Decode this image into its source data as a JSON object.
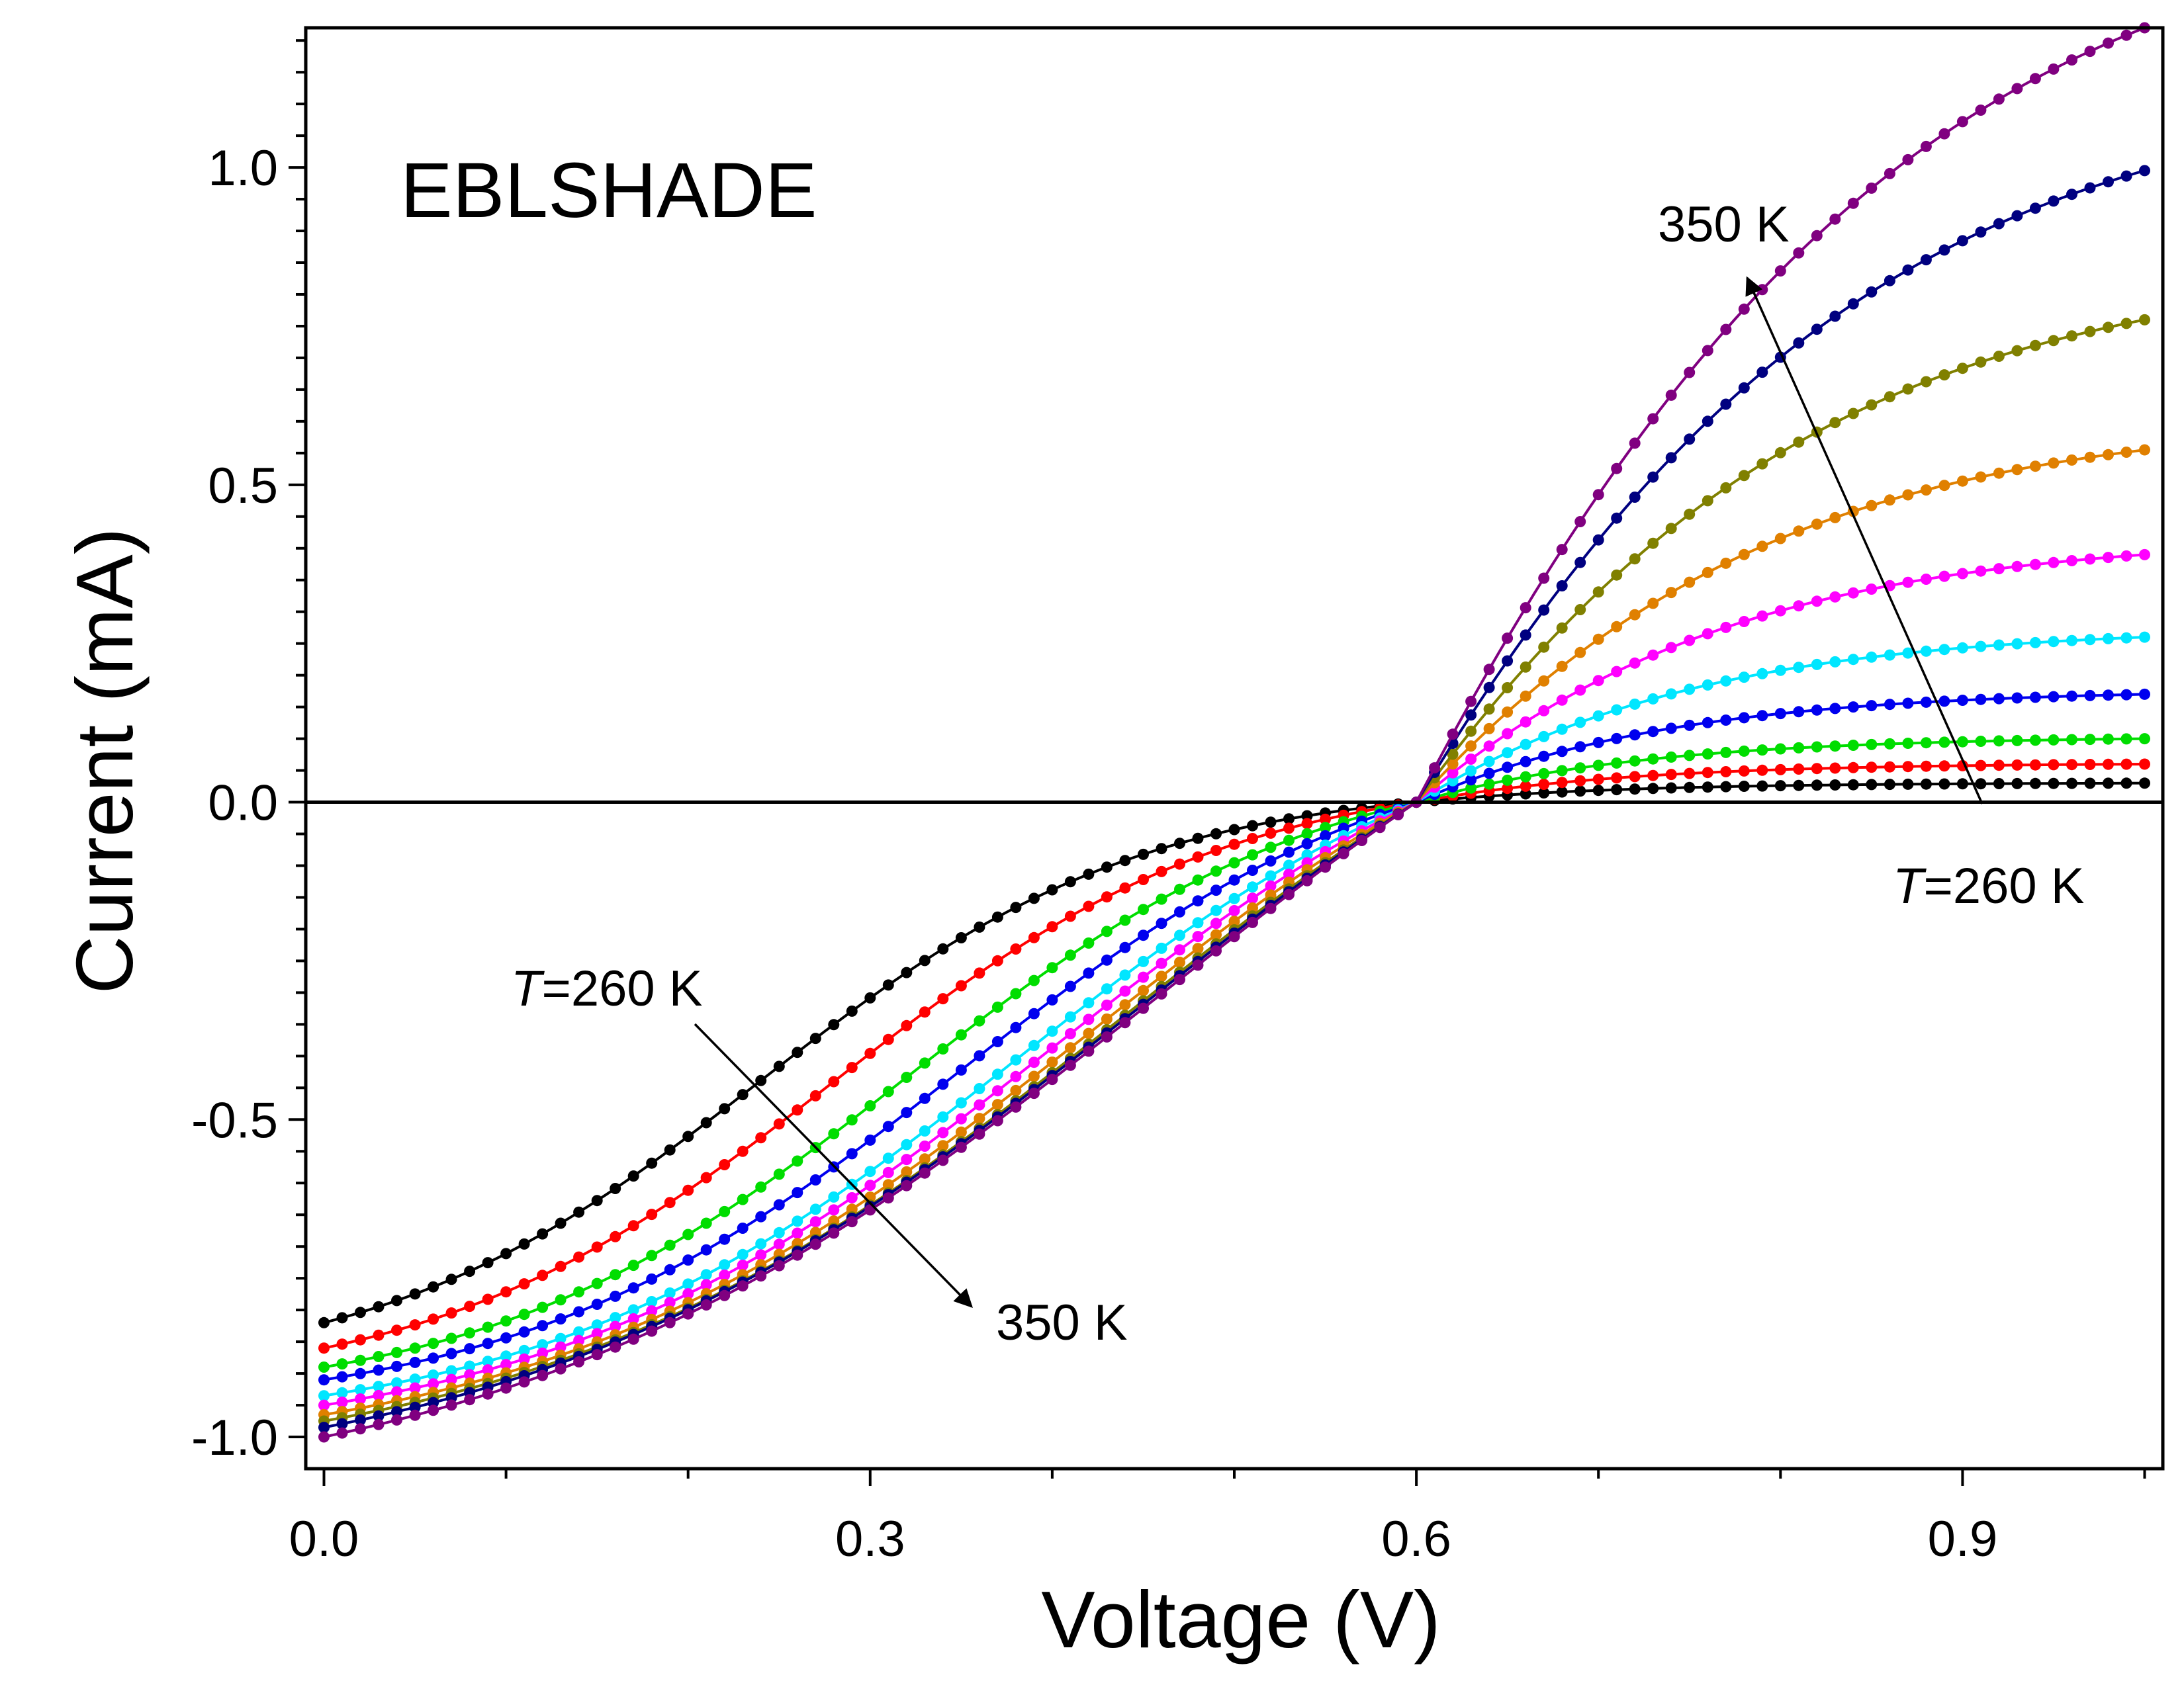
{
  "chart_data": {
    "type": "scatter",
    "panel_label": "EBLSHADE",
    "xlabel": "Voltage (V)",
    "ylabel": "Current (mA)",
    "xlim": [
      -0.01,
      1.01
    ],
    "ylim": [
      -1.05,
      1.22
    ],
    "xticks": [
      0.0,
      0.3,
      0.6,
      0.9
    ],
    "xtick_labels": [
      "0.0",
      "0.3",
      "0.6",
      "0.9"
    ],
    "yticks": [
      -1.0,
      -0.5,
      0.0,
      0.5,
      1.0
    ],
    "ytick_labels": [
      "-1.0",
      "-0.5",
      "0.0",
      "0.5",
      "1.0"
    ],
    "zero_line": true,
    "grid": false,
    "legend": "none",
    "markers": "dots (measured)",
    "fit": "solid line per series",
    "series": [
      {
        "color": "#000000",
        "isc": -0.82,
        "i_end": 0.03,
        "knee": 0.24,
        "width": 0.105
      },
      {
        "color": "#ff0000",
        "isc": -0.86,
        "i_end": 0.06,
        "knee": 0.28,
        "width": 0.11
      },
      {
        "color": "#00dd00",
        "isc": -0.89,
        "i_end": 0.1,
        "knee": 0.32,
        "width": 0.115
      },
      {
        "color": "#0000ee",
        "isc": -0.91,
        "i_end": 0.17,
        "knee": 0.35,
        "width": 0.122
      },
      {
        "color": "#00e6ff",
        "isc": -0.935,
        "i_end": 0.26,
        "knee": 0.38,
        "width": 0.13
      },
      {
        "color": "#ff00ff",
        "isc": -0.95,
        "i_end": 0.39,
        "knee": 0.4,
        "width": 0.14
      },
      {
        "color": "#e08000",
        "isc": -0.965,
        "i_end": 0.555,
        "knee": 0.42,
        "width": 0.15
      },
      {
        "color": "#808000",
        "isc": -0.975,
        "i_end": 0.76,
        "knee": 0.44,
        "width": 0.16
      },
      {
        "color": "#000080",
        "isc": -0.985,
        "i_end": 0.995,
        "knee": 0.45,
        "width": 0.17
      },
      {
        "color": "#800080",
        "isc": -1.0,
        "i_end": 1.22,
        "knee": 0.46,
        "width": 0.18
      }
    ],
    "annotations": [
      {
        "prefix": "T",
        "text": "=260 K",
        "x0": 0.21,
        "y0": -0.36,
        "x1": 0.36,
        "y1": -0.72
      },
      {
        "prefix": "",
        "text": "350 K",
        "x0": 0.36,
        "y0": -0.72,
        "x1": 0.36,
        "y1": -0.72
      },
      {
        "prefix": "",
        "text": "350 K",
        "x0": 0.9,
        "y0": -0.01,
        "x1": 0.78,
        "y1": 0.82
      },
      {
        "prefix": "T",
        "text": "=260 K",
        "x0": 0.9,
        "y0": -0.01,
        "x1": 0.9,
        "y1": -0.01
      }
    ]
  }
}
